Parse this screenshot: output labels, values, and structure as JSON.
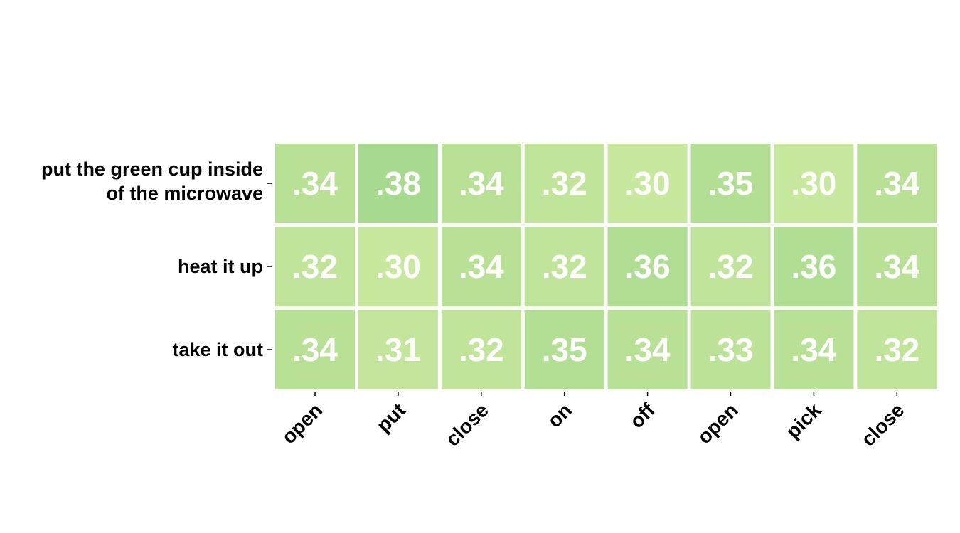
{
  "chart_data": {
    "type": "heatmap",
    "rows": [
      [
        "put the green cup inside",
        "of the microwave"
      ],
      [
        "heat it up"
      ],
      [
        "take it out"
      ]
    ],
    "columns": [
      "open",
      "put",
      "close",
      "on",
      "off",
      "open",
      "pick",
      "close"
    ],
    "values": [
      [
        0.34,
        0.38,
        0.34,
        0.32,
        0.3,
        0.35,
        0.3,
        0.34
      ],
      [
        0.32,
        0.3,
        0.34,
        0.32,
        0.36,
        0.32,
        0.36,
        0.34
      ],
      [
        0.34,
        0.31,
        0.32,
        0.35,
        0.34,
        0.33,
        0.34,
        0.32
      ]
    ],
    "value_range": [
      0.3,
      0.38
    ],
    "colors": {
      "low": "#c8e89e",
      "high": "#a7da8e",
      "cell_text": "#ffffff",
      "label_text": "#000000"
    }
  }
}
